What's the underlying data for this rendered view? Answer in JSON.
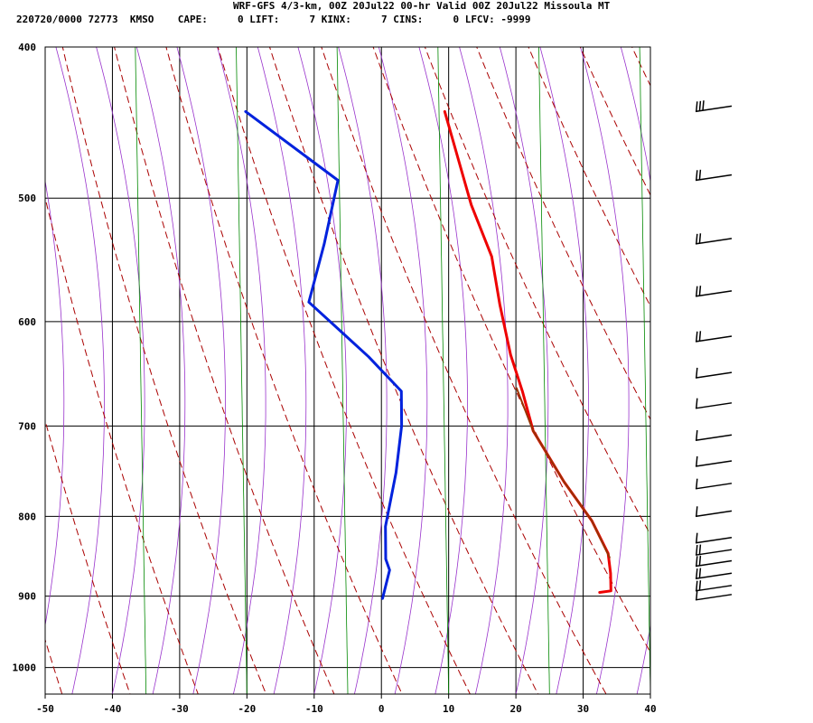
{
  "header": {
    "title_line": "WRF-GFS 4/3-km, 00Z 20Jul22 00-hr Valid 00Z 20Jul22 Missoula MT",
    "index_line": "220720/0000 72773  KMSO    CAPE:     0 LIFT:     7 KINX:     7 CINS:     0 LFCV: -9999"
  },
  "chart_data": {
    "type": "line",
    "subtype": "skew-t log-p sounding",
    "x_axis": {
      "label": "",
      "ticks": [
        -50,
        -40,
        -30,
        -20,
        -10,
        0,
        10,
        20,
        30,
        40
      ],
      "range": [
        -50,
        40
      ]
    },
    "y_axis": {
      "label": "",
      "ticks": [
        400,
        500,
        600,
        700,
        800,
        900,
        1000
      ],
      "range": [
        400,
        1040
      ],
      "scale": "log"
    },
    "grid": true,
    "colors": {
      "temperature": "#ee0000",
      "dewpoint": "#0022dd",
      "parcel": "#993300",
      "isotherm": "#000000",
      "dry_adiabat": "#aa0000",
      "moist_adiabat": "#9933cc",
      "mixing_ratio": "#008800",
      "wind_barb": "#000000"
    },
    "series": [
      {
        "key": "temperature",
        "points": [
          [
            -18.4,
            440
          ],
          [
            -10,
            505
          ],
          [
            -4.5,
            545
          ],
          [
            -1,
            585
          ],
          [
            3,
            630
          ],
          [
            6.5,
            665
          ],
          [
            10,
            705
          ],
          [
            17,
            760
          ],
          [
            23,
            805
          ],
          [
            27,
            845
          ],
          [
            28.3,
            870
          ],
          [
            29.2,
            893
          ],
          [
            27.6,
            895
          ]
        ]
      },
      {
        "key": "dewpoint",
        "points": [
          [
            -48,
            440
          ],
          [
            -31,
            487
          ],
          [
            -30,
            535
          ],
          [
            -29.5,
            583
          ],
          [
            -18,
            632
          ],
          [
            -11.5,
            665
          ],
          [
            -9.8,
            700
          ],
          [
            -8.4,
            750
          ],
          [
            -7.4,
            812
          ],
          [
            -5.8,
            852
          ],
          [
            -4.7,
            866
          ],
          [
            -4.4,
            903
          ]
        ]
      },
      {
        "key": "parcel",
        "points": [
          [
            5.5,
            662
          ],
          [
            10,
            705
          ],
          [
            17,
            760
          ],
          [
            23,
            805
          ],
          [
            27.4,
            850
          ]
        ]
      }
    ],
    "wind_barbs": [
      {
        "p": 440,
        "barbs": 3
      },
      {
        "p": 487,
        "barbs": 2
      },
      {
        "p": 535,
        "barbs": 2
      },
      {
        "p": 578,
        "barbs": 2
      },
      {
        "p": 618,
        "barbs": 2
      },
      {
        "p": 652,
        "barbs": 1
      },
      {
        "p": 682,
        "barbs": 1
      },
      {
        "p": 715,
        "barbs": 1
      },
      {
        "p": 743,
        "barbs": 1
      },
      {
        "p": 768,
        "barbs": 1
      },
      {
        "p": 800,
        "barbs": 1
      },
      {
        "p": 832,
        "barbs": 1
      },
      {
        "p": 847,
        "barbs": 2
      },
      {
        "p": 861,
        "barbs": 2
      },
      {
        "p": 877,
        "barbs": 2
      },
      {
        "p": 893,
        "barbs": 2
      },
      {
        "p": 905,
        "barbs": 1
      }
    ]
  }
}
